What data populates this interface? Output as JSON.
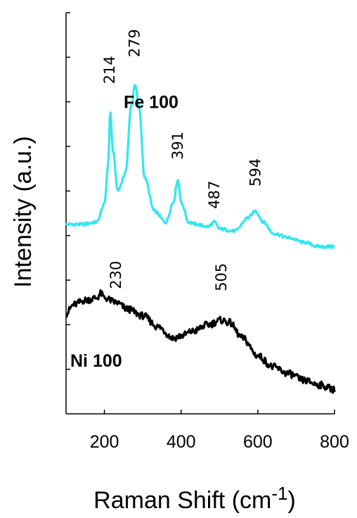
{
  "chart_data": {
    "type": "line",
    "title": "",
    "xlabel": "Raman Shift (cm",
    "xlabel_superscript": "-1",
    "xlabel_close": ")",
    "ylabel": "Intensity (a.u.)",
    "xlim": [
      100,
      800
    ],
    "ylim": [
      0,
      9
    ],
    "x_ticks": [
      200,
      400,
      600,
      800
    ],
    "y_ticks_labeled": false,
    "grid": false,
    "series": [
      {
        "name": "Fe 100",
        "color": "#33e6f0",
        "x": [
          100,
          140,
          180,
          200,
          210,
          215,
          222,
          235,
          255,
          270,
          280,
          290,
          305,
          330,
          360,
          380,
          391,
          402,
          420,
          440,
          470,
          487,
          500,
          540,
          575,
          594,
          615,
          640,
          680,
          720,
          760,
          800
        ],
        "y": [
          4.25,
          4.25,
          4.3,
          4.7,
          5.6,
          6.8,
          5.9,
          5.0,
          5.4,
          6.9,
          7.4,
          6.9,
          5.3,
          4.55,
          4.3,
          4.75,
          5.25,
          4.7,
          4.3,
          4.25,
          4.2,
          4.3,
          4.15,
          4.1,
          4.4,
          4.55,
          4.3,
          4.05,
          3.95,
          3.85,
          3.75,
          3.75
        ]
      },
      {
        "name": "Ni 100",
        "color": "#000000",
        "x": [
          100,
          120,
          150,
          180,
          190,
          200,
          230,
          260,
          300,
          340,
          380,
          400,
          430,
          470,
          505,
          525,
          560,
          600,
          640,
          680,
          720,
          760,
          800
        ],
        "y": [
          2.25,
          2.45,
          2.55,
          2.6,
          2.7,
          2.6,
          2.5,
          2.35,
          2.2,
          1.95,
          1.7,
          1.75,
          1.85,
          2.0,
          2.1,
          2.05,
          1.7,
          1.3,
          1.05,
          0.9,
          0.75,
          0.65,
          0.55
        ]
      }
    ],
    "peak_labels": [
      {
        "text": "214",
        "x": 214,
        "y": 7.4
      },
      {
        "text": "279",
        "x": 279,
        "y": 8.0
      },
      {
        "text": "391",
        "x": 391,
        "y": 5.7
      },
      {
        "text": "487",
        "x": 487,
        "y": 4.6
      },
      {
        "text": "594",
        "x": 594,
        "y": 5.1
      },
      {
        "text": "230",
        "x": 230,
        "y": 2.8
      },
      {
        "text": "505",
        "x": 505,
        "y": 2.75
      }
    ],
    "series_labels": [
      {
        "text": "Fe 100",
        "x": 470,
        "y": 7.0
      },
      {
        "text": "Ni 100",
        "x": 100,
        "y": 1.2
      }
    ]
  }
}
